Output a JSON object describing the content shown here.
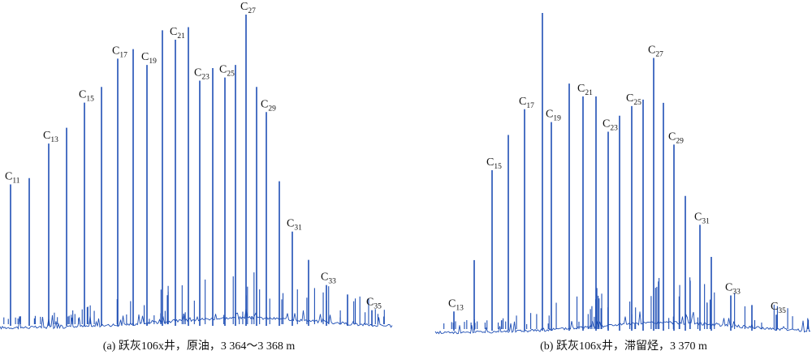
{
  "chart_data": [
    {
      "type": "chromatogram",
      "caption": "(a) 跃灰106x井，原油，3 364～3 368 m",
      "color": "#1f4fb5",
      "ylim": [
        0,
        100
      ],
      "labeled_peaks": [
        {
          "c": 11,
          "x": 13,
          "y": 46
        },
        {
          "c": 13,
          "x": 60,
          "y": 59
        },
        {
          "c": 15,
          "x": 104,
          "y": 72
        },
        {
          "c": 17,
          "x": 145,
          "y": 86
        },
        {
          "c": 19,
          "x": 181,
          "y": 84
        },
        {
          "c": 21,
          "x": 216,
          "y": 92
        },
        {
          "c": 23,
          "x": 246,
          "y": 79
        },
        {
          "c": 25,
          "x": 277,
          "y": 80
        },
        {
          "c": 27,
          "x": 303,
          "y": 100
        },
        {
          "c": 29,
          "x": 328,
          "y": 69
        },
        {
          "c": 31,
          "x": 360,
          "y": 31
        },
        {
          "c": 33,
          "x": 402,
          "y": 14
        },
        {
          "c": 35,
          "x": 458,
          "y": 6
        }
      ],
      "unlabeled_peaks": [
        {
          "x": 36,
          "y": 48
        },
        {
          "x": 82,
          "y": 64
        },
        {
          "x": 125,
          "y": 77
        },
        {
          "x": 164,
          "y": 89
        },
        {
          "x": 200,
          "y": 95
        },
        {
          "x": 232,
          "y": 96
        },
        {
          "x": 262,
          "y": 83
        },
        {
          "x": 290,
          "y": 84
        },
        {
          "x": 316,
          "y": 77
        },
        {
          "x": 344,
          "y": 47
        },
        {
          "x": 380,
          "y": 22
        },
        {
          "x": 428,
          "y": 11
        }
      ],
      "labels": {
        "11": "C",
        "13": "C",
        "15": "C",
        "17": "C",
        "19": "C",
        "21": "C",
        "23": "C",
        "25": "C",
        "27": "C",
        "29": "C",
        "31": "C",
        "33": "C",
        "35": "C"
      }
    },
    {
      "type": "chromatogram",
      "caption": "(b) 跃灰106x井，滞留烃，3 370 m",
      "color": "#1f4fb5",
      "ylim": [
        0,
        100
      ],
      "labeled_peaks": [
        {
          "c": 13,
          "x": 23,
          "y": 7
        },
        {
          "c": 15,
          "x": 70,
          "y": 51
        },
        {
          "c": 17,
          "x": 110,
          "y": 70
        },
        {
          "c": 19,
          "x": 143,
          "y": 66
        },
        {
          "c": 21,
          "x": 182,
          "y": 74
        },
        {
          "c": 23,
          "x": 213,
          "y": 63
        },
        {
          "c": 25,
          "x": 242,
          "y": 71
        },
        {
          "c": 27,
          "x": 269,
          "y": 86
        },
        {
          "c": 29,
          "x": 294,
          "y": 59
        },
        {
          "c": 31,
          "x": 326,
          "y": 34
        },
        {
          "c": 33,
          "x": 364,
          "y": 12
        },
        {
          "c": 35,
          "x": 420,
          "y": 6
        }
      ],
      "unlabeled_peaks": [
        {
          "x": 48,
          "y": 23
        },
        {
          "x": 90,
          "y": 62
        },
        {
          "x": 132,
          "y": 100
        },
        {
          "x": 165,
          "y": 78
        },
        {
          "x": 198,
          "y": 74
        },
        {
          "x": 227,
          "y": 68
        },
        {
          "x": 256,
          "y": 73
        },
        {
          "x": 281,
          "y": 72
        },
        {
          "x": 308,
          "y": 43
        },
        {
          "x": 340,
          "y": 24
        },
        {
          "x": 390,
          "y": 9
        }
      ],
      "labels": {
        "13": "C",
        "15": "C",
        "17": "C",
        "19": "C",
        "21": "C",
        "23": "C",
        "25": "C",
        "27": "C",
        "29": "C",
        "31": "C",
        "33": "C",
        "35": "C"
      }
    }
  ]
}
